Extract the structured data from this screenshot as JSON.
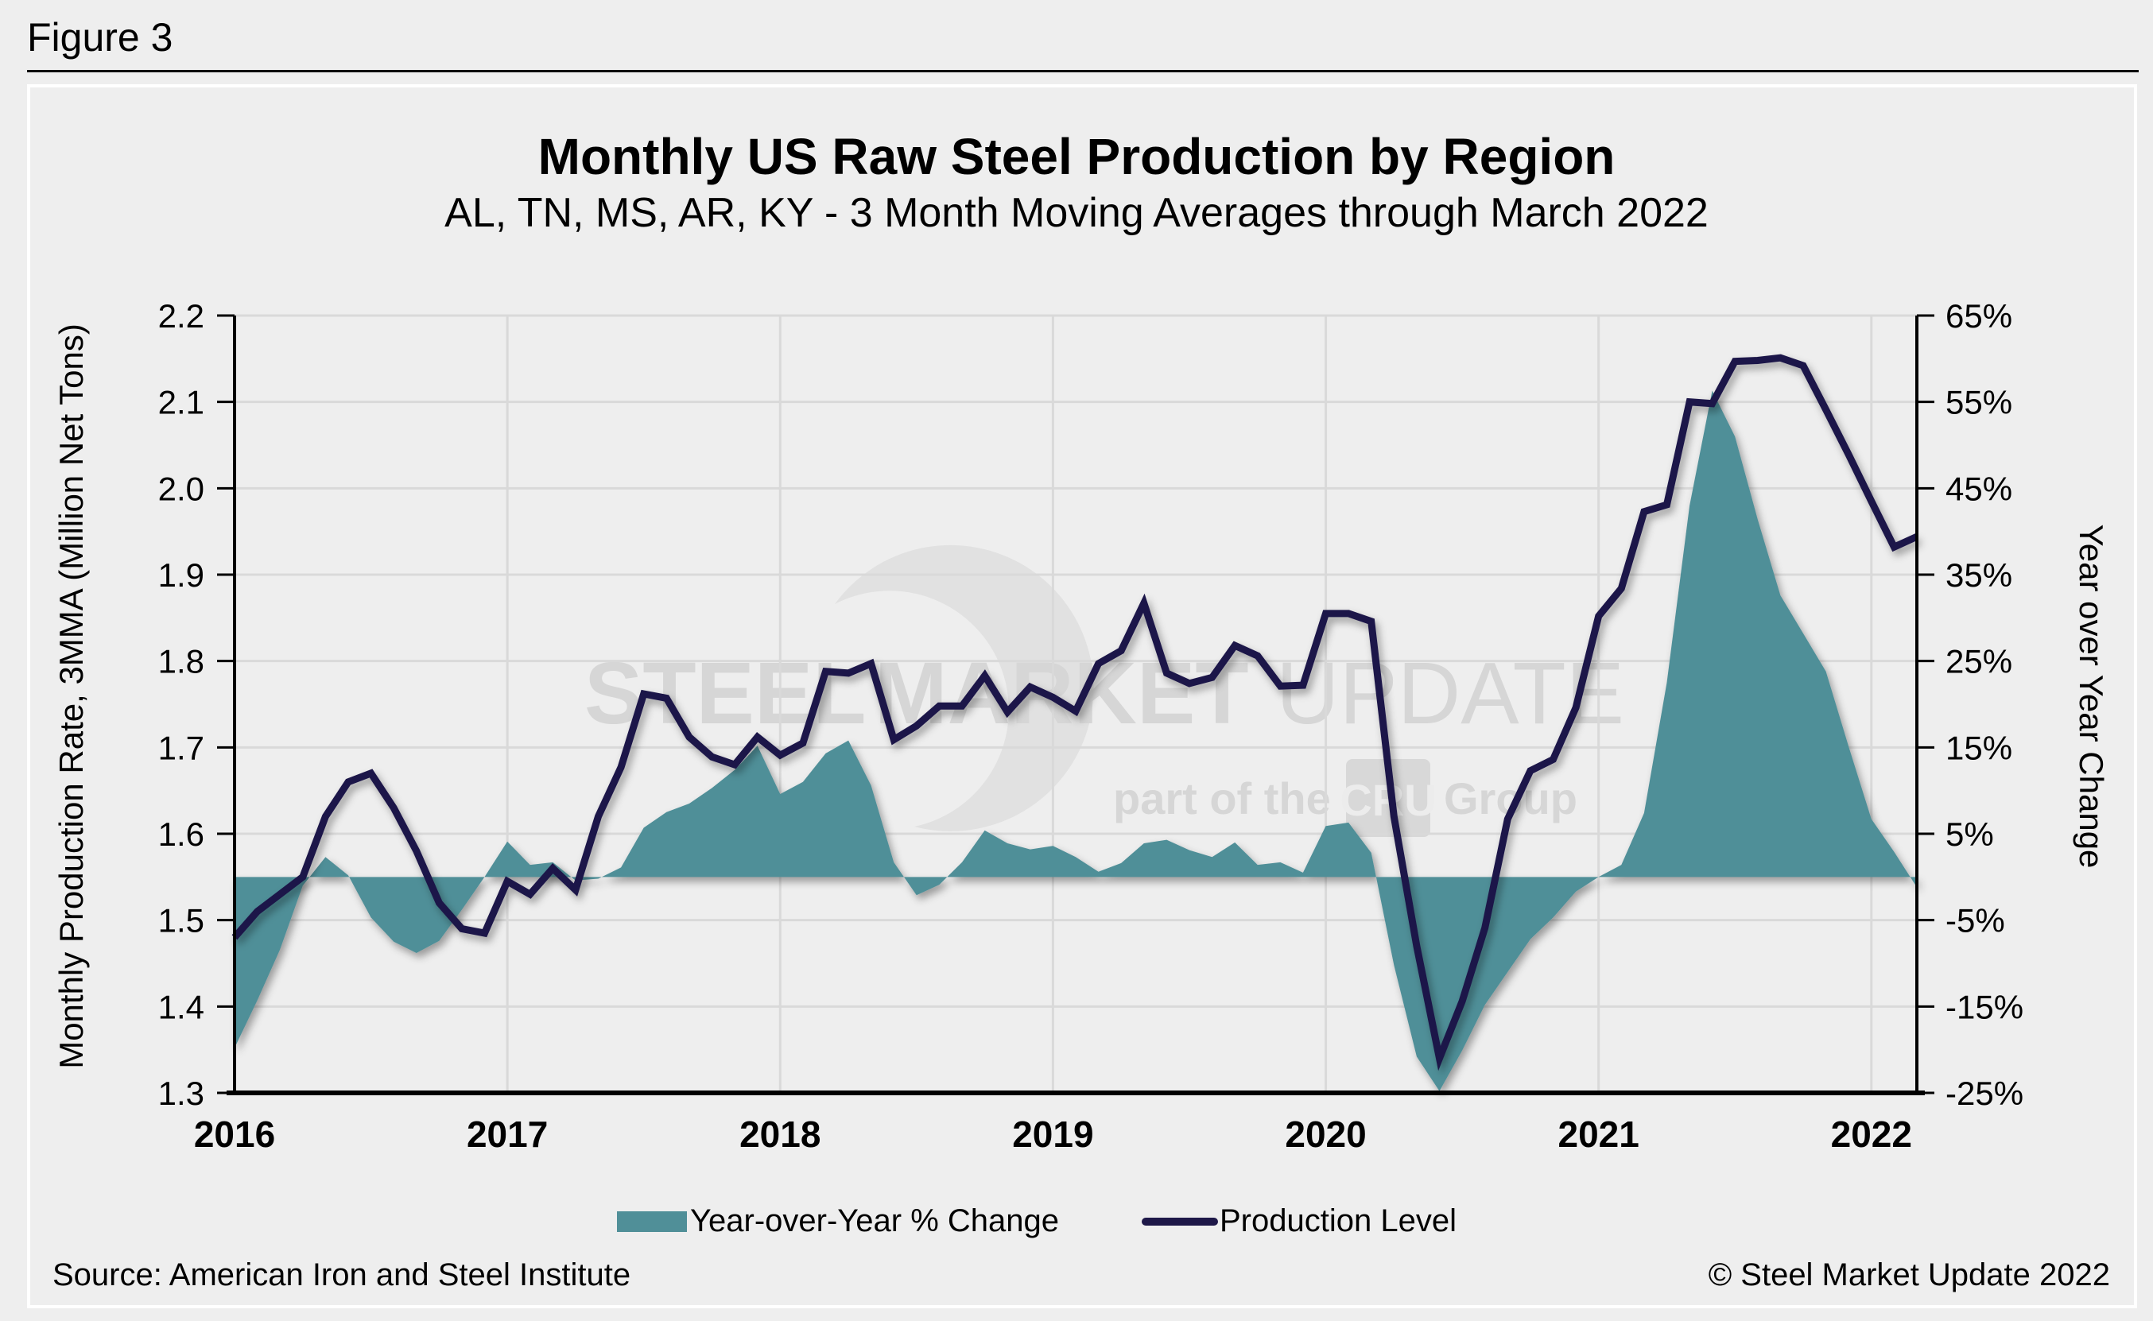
{
  "figure_label": "Figure 3",
  "source": "Source: American Iron and Steel Institute",
  "copyright": "© Steel Market Update 2022",
  "watermark": {
    "brand": "STEEL MARKET UPDATE",
    "brand_bold": "STEEL",
    "brand_rest": "MARKET",
    "brand_light": "UPDATE",
    "tagline_prefix": "part of the",
    "tagline_logo": "CRU",
    "tagline_suffix": "Group"
  },
  "colors": {
    "yoy_area": "#508f98",
    "production_line": "#1e1848",
    "gridline": "#d9d9d9",
    "background": "#eeeeee"
  },
  "chart_data": {
    "type": "line",
    "title": "Monthly US Raw Steel Production by Region",
    "subtitle": "AL, TN, MS, AR, KY - 3 Month Moving Averages through March 2022",
    "xlabel": "",
    "ylabel": "Monthly Production Rate, 3MMA (Million Net Tons)",
    "y2label": "Year over Year Change",
    "ylim": [
      1.3,
      2.2
    ],
    "y2lim": [
      -25,
      65
    ],
    "yticks": [
      "1.3",
      "1.4",
      "1.5",
      "1.6",
      "1.7",
      "1.8",
      "1.9",
      "2.0",
      "2.1",
      "2.2"
    ],
    "y2ticks": [
      "-25%",
      "-15%",
      "-5%",
      "5%",
      "15%",
      "25%",
      "35%",
      "45%",
      "55%",
      "65%"
    ],
    "xticks": [
      "2016",
      "2017",
      "2018",
      "2019",
      "2020",
      "2021",
      "2022"
    ],
    "grid": true,
    "legend_position": "bottom-center",
    "x_start": "2016-01",
    "x_end": "2022-03",
    "frequency": "monthly",
    "series": [
      {
        "name": "Year-over-Year % Change",
        "kind": "area",
        "axis": "right",
        "unit": "%",
        "values": [
          -19.8,
          -14.3,
          -8.4,
          -1.0,
          2.3,
          0.2,
          -4.7,
          -7.5,
          -8.8,
          -7.4,
          -3.8,
          0.0,
          4.1,
          1.4,
          1.7,
          -0.4,
          -0.2,
          1.1,
          5.7,
          7.5,
          8.5,
          10.3,
          12.4,
          15.2,
          9.6,
          11.0,
          14.3,
          15.8,
          10.6,
          1.7,
          -2.1,
          -0.9,
          1.7,
          5.4,
          3.9,
          3.2,
          3.6,
          2.3,
          0.6,
          1.6,
          3.9,
          4.3,
          3.1,
          2.3,
          4.0,
          1.4,
          1.7,
          0.5,
          5.9,
          6.3,
          2.8,
          -10.2,
          -20.8,
          -24.8,
          -20.1,
          -14.8,
          -11.0,
          -7.2,
          -4.7,
          -1.7,
          0.0,
          1.4,
          7.4,
          22.5,
          43.0,
          56.3,
          51.0,
          41.4,
          32.6,
          28.2,
          23.8,
          15.1,
          6.7,
          2.9,
          -1.2
        ]
      },
      {
        "name": "Production Level",
        "kind": "line",
        "axis": "left",
        "unit": "million net tons",
        "values": [
          1.48,
          1.51,
          1.53,
          1.55,
          1.62,
          1.66,
          1.67,
          1.63,
          1.58,
          1.52,
          1.49,
          1.485,
          1.545,
          1.53,
          1.56,
          1.535,
          1.62,
          1.677,
          1.762,
          1.757,
          1.712,
          1.689,
          1.68,
          1.712,
          1.691,
          1.705,
          1.788,
          1.786,
          1.797,
          1.709,
          1.725,
          1.748,
          1.748,
          1.783,
          1.741,
          1.77,
          1.758,
          1.742,
          1.797,
          1.812,
          1.867,
          1.786,
          1.774,
          1.781,
          1.818,
          1.806,
          1.771,
          1.772,
          1.855,
          1.855,
          1.846,
          1.62,
          1.47,
          1.34,
          1.406,
          1.491,
          1.617,
          1.673,
          1.686,
          1.746,
          1.852,
          1.884,
          1.973,
          1.981,
          2.1,
          2.098,
          2.147,
          2.148,
          2.151,
          2.142,
          2.091,
          2.039,
          1.985,
          1.932,
          1.944
        ]
      }
    ]
  }
}
